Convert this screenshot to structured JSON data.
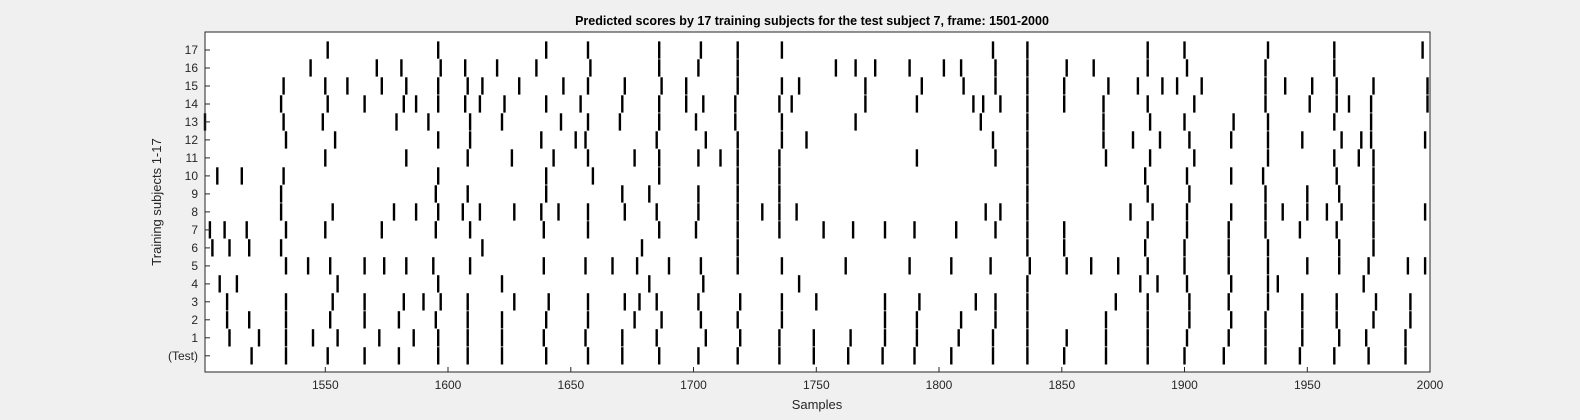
{
  "chart_data": {
    "type": "raster",
    "title": "Predicted scores by 17 training subjects for the test subject 7, frame: 1501-2000",
    "xlabel": "Samples",
    "ylabel": "Training subjects 1-17",
    "xlim": [
      1501,
      2000
    ],
    "xticks": [
      1550,
      1600,
      1650,
      1700,
      1750,
      1800,
      1850,
      1900,
      1950,
      2000
    ],
    "grid": false,
    "colors": {
      "background": "#f0f0f0",
      "axes": "#ffffff",
      "marks": "#000000"
    },
    "rows": [
      {
        "label": "(Test)",
        "x": [
          1520,
          1534,
          1551,
          1566,
          1580,
          1596,
          1608,
          1622,
          1640,
          1657,
          1671,
          1686,
          1702,
          1718,
          1735,
          1749,
          1763,
          1777,
          1790,
          1805,
          1822,
          1836,
          1851,
          1868,
          1885,
          1900,
          1916,
          1933,
          1947,
          1961,
          1975,
          1990
        ]
      },
      {
        "label": "1",
        "x": [
          1511,
          1523,
          1534,
          1545,
          1555,
          1572,
          1586,
          1596,
          1608,
          1622,
          1639,
          1656,
          1671,
          1685,
          1705,
          1719,
          1735,
          1749,
          1764,
          1778,
          1791,
          1808,
          1822,
          1836,
          1852,
          1868,
          1885,
          1901,
          1918,
          1933,
          1948,
          1963,
          1974,
          1990
        ]
      },
      {
        "label": "2",
        "x": [
          1510,
          1519,
          1534,
          1552,
          1566,
          1580,
          1595,
          1608,
          1622,
          1640,
          1657,
          1676,
          1687,
          1703,
          1718,
          1736,
          1778,
          1791,
          1809,
          1823,
          1836,
          1868,
          1885,
          1902,
          1919,
          1933,
          1948,
          1962,
          1977,
          1992
        ]
      },
      {
        "label": "3",
        "x": [
          1510,
          1534,
          1553,
          1566,
          1582,
          1590,
          1597,
          1608,
          1627,
          1641,
          1657,
          1672,
          1678,
          1685,
          1702,
          1719,
          1736,
          1750,
          1778,
          1792,
          1815,
          1823,
          1836,
          1872,
          1885,
          1902,
          1918,
          1934,
          1948,
          1962,
          1978,
          1992
        ]
      },
      {
        "label": "4",
        "x": [
          1507,
          1514,
          1555,
          1596,
          1622,
          1682,
          1704,
          1743,
          1836,
          1882,
          1889,
          1901,
          1919,
          1934,
          1938,
          1973
        ]
      },
      {
        "label": "5",
        "x": [
          1534,
          1543,
          1552,
          1566,
          1574,
          1583,
          1594,
          1609,
          1639,
          1656,
          1667,
          1677,
          1690,
          1703,
          1718,
          1736,
          1762,
          1788,
          1805,
          1821,
          1837,
          1852,
          1862,
          1873,
          1885,
          1900,
          1918,
          1934,
          1950,
          1963,
          1975,
          1991,
          1998
        ]
      },
      {
        "label": "6",
        "x": [
          1504,
          1511,
          1519,
          1532,
          1614,
          1679,
          1718,
          1836,
          1851,
          1884,
          1900,
          1918,
          1934,
          1963,
          1977
        ]
      },
      {
        "label": "7",
        "x": [
          1503,
          1509,
          1518,
          1534,
          1550,
          1573,
          1595,
          1609,
          1639,
          1657,
          1686,
          1701,
          1718,
          1735,
          1753,
          1765,
          1778,
          1790,
          1807,
          1823,
          1836,
          1851,
          1885,
          1901,
          1918,
          1933,
          1947,
          1962,
          1977
        ]
      },
      {
        "label": "8",
        "x": [
          1532,
          1553,
          1578,
          1587,
          1596,
          1606,
          1613,
          1627,
          1638,
          1645,
          1657,
          1672,
          1685,
          1702,
          1718,
          1728,
          1735,
          1742,
          1819,
          1825,
          1836,
          1878,
          1887,
          1901,
          1919,
          1933,
          1940,
          1950,
          1958,
          1964,
          1977,
          1998
        ]
      },
      {
        "label": "9",
        "x": [
          1532,
          1595,
          1608,
          1640,
          1671,
          1682,
          1702,
          1718,
          1735,
          1836,
          1885,
          1902,
          1933,
          1950,
          1963,
          1977
        ]
      },
      {
        "label": "10",
        "x": [
          1506,
          1516,
          1533,
          1596,
          1640,
          1659,
          1686,
          1718,
          1735,
          1836,
          1884,
          1901,
          1919,
          1932,
          1962,
          1977
        ]
      },
      {
        "label": "11",
        "x": [
          1550,
          1583,
          1608,
          1626,
          1643,
          1657,
          1676,
          1686,
          1702,
          1711,
          1718,
          1735,
          1791,
          1823,
          1836,
          1868,
          1886,
          1904,
          1934,
          1961,
          1971,
          1977
        ]
      },
      {
        "label": "12",
        "x": [
          1534,
          1554,
          1596,
          1609,
          1638,
          1652,
          1656,
          1685,
          1705,
          1718,
          1736,
          1746,
          1822,
          1836,
          1867,
          1879,
          1890,
          1902,
          1919,
          1934,
          1948,
          1964,
          1972,
          1976,
          1998
        ]
      },
      {
        "label": "13",
        "x": [
          1501,
          1533,
          1549,
          1579,
          1592,
          1609,
          1622,
          1646,
          1657,
          1670,
          1686,
          1701,
          1717,
          1736,
          1766,
          1817,
          1836,
          1867,
          1886,
          1900,
          1920,
          1934,
          1961,
          1976
        ]
      },
      {
        "label": "14",
        "x": [
          1532,
          1551,
          1566,
          1582,
          1587,
          1596,
          1607,
          1613,
          1623,
          1640,
          1654,
          1671,
          1686,
          1697,
          1704,
          1717,
          1735,
          1740,
          1770,
          1791,
          1814,
          1818,
          1825,
          1836,
          1851,
          1867,
          1885,
          1904,
          1933,
          1951,
          1962,
          1967,
          1976,
          1999
        ]
      },
      {
        "label": "15",
        "x": [
          1533,
          1550,
          1559,
          1573,
          1583,
          1596,
          1608,
          1614,
          1629,
          1647,
          1657,
          1672,
          1687,
          1697,
          1718,
          1736,
          1743,
          1770,
          1793,
          1810,
          1823,
          1836,
          1851,
          1869,
          1881,
          1891,
          1897,
          1907,
          1933,
          1941,
          1952,
          1962,
          1977,
          1999
        ]
      },
      {
        "label": "16",
        "x": [
          1544,
          1571,
          1581,
          1597,
          1607,
          1620,
          1636,
          1658,
          1686,
          1702,
          1718,
          1758,
          1766,
          1774,
          1788,
          1802,
          1809,
          1823,
          1836,
          1852,
          1863,
          1885,
          1901,
          1933,
          1961
        ]
      },
      {
        "label": "17",
        "x": [
          1551,
          1596,
          1640,
          1657,
          1686,
          1703,
          1718,
          1736,
          1822,
          1836,
          1885,
          1900,
          1934,
          1961,
          1997
        ]
      }
    ]
  }
}
